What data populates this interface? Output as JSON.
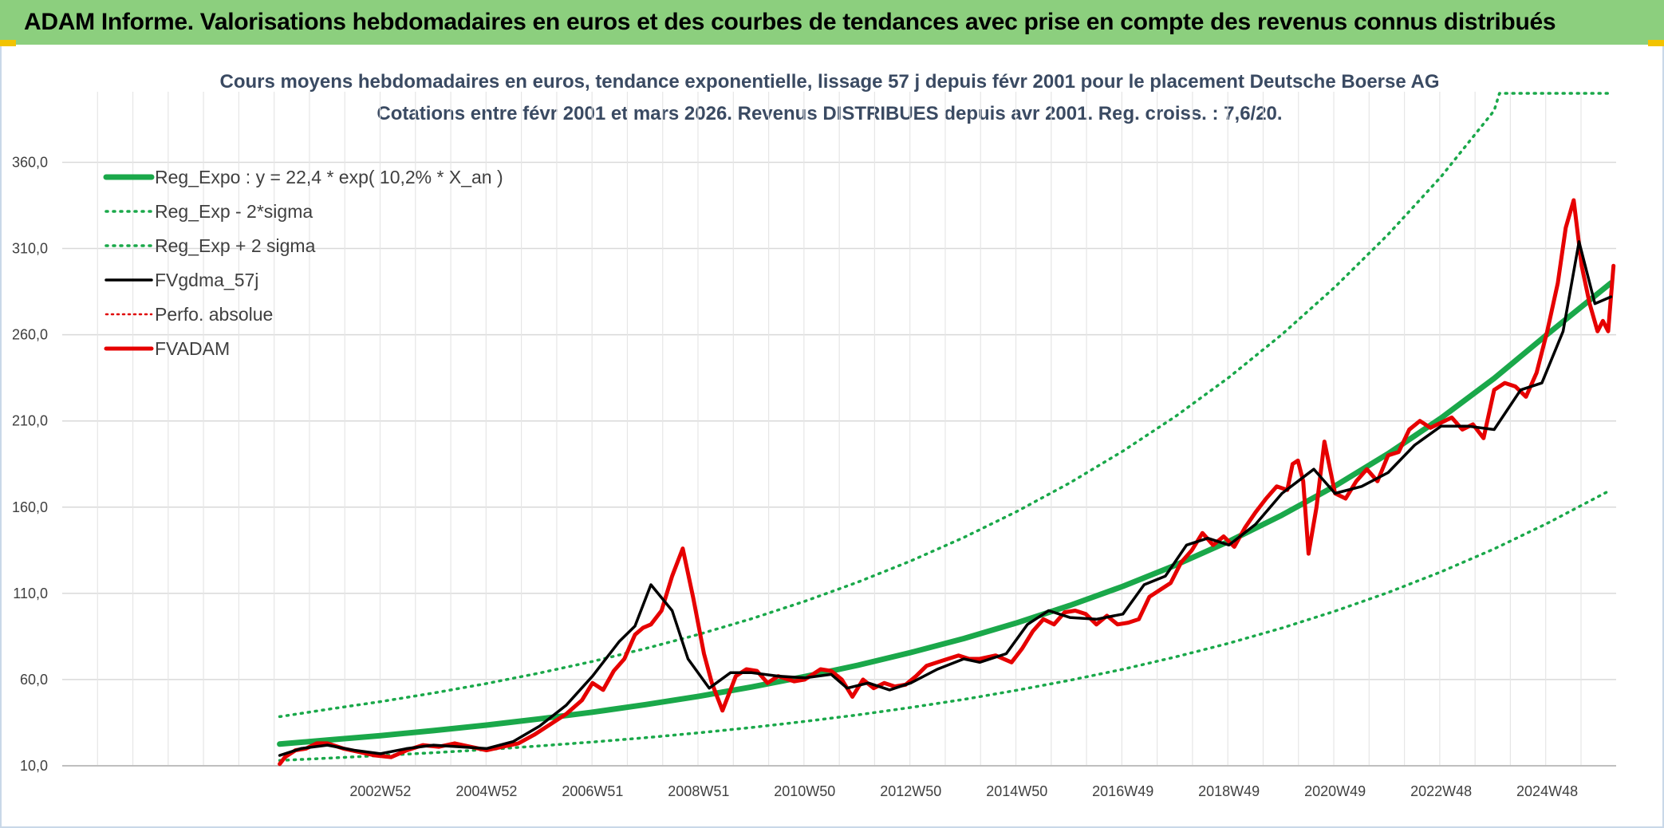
{
  "banner": {
    "title": "ADAM Informe. Valorisations hebdomadaires en euros et des courbes de tendances avec prise en compte des revenus connus distribués"
  },
  "colors": {
    "banner_bg": "#8ccf7e",
    "reg_expo": "#1aa84a",
    "sigma": "#1aa84a",
    "fvgdma": "#000000",
    "perfo": "#e00000",
    "fvadam": "#e60000",
    "grid": "#d9d9d9",
    "title_text": "#3a4a62"
  },
  "chart_data": {
    "type": "line",
    "title_lines": [
      "Cours moyens hebdomadaires en euros, tendance exponentielle, lissage 57 j depuis févr 2001 pour le placement Deutsche Boerse AG",
      "Cotations entre févr 2001 et mars 2026. Revenus DISTRIBUES depuis avr 2001. Reg. croiss. : 7,6/20."
    ],
    "y_ticks": [
      "10,0",
      "60,0",
      "110,0",
      "160,0",
      "210,0",
      "260,0",
      "310,0",
      "360,0"
    ],
    "y_tick_values": [
      10,
      60,
      110,
      160,
      210,
      260,
      310,
      360
    ],
    "ylim": [
      10,
      400
    ],
    "xlim": [
      1997.0,
      2026.3
    ],
    "grid": true,
    "x_ticks": [
      {
        "label": "2002W52",
        "x": 2003.0
      },
      {
        "label": "2004W52",
        "x": 2005.0
      },
      {
        "label": "2006W51",
        "x": 2007.0
      },
      {
        "label": "2008W51",
        "x": 2009.0
      },
      {
        "label": "2010W50",
        "x": 2011.0
      },
      {
        "label": "2012W50",
        "x": 2013.0
      },
      {
        "label": "2014W50",
        "x": 2015.0
      },
      {
        "label": "2016W49",
        "x": 2017.0
      },
      {
        "label": "2018W49",
        "x": 2019.0
      },
      {
        "label": "2020W49",
        "x": 2021.0
      },
      {
        "label": "2022W48",
        "x": 2023.0
      },
      {
        "label": "2024W48",
        "x": 2025.0
      }
    ],
    "legend_position": "top-left",
    "legend": [
      {
        "key": "reg_expo",
        "label": "Reg_Expo : y = 22,4 * exp( 10,2% *  X_an )",
        "style": "solid-thick"
      },
      {
        "key": "reg_minus",
        "label": "Reg_Exp - 2*sigma",
        "style": "dotted"
      },
      {
        "key": "reg_plus",
        "label": "Reg_Exp + 2 sigma",
        "style": "dotted"
      },
      {
        "key": "fvgdma",
        "label": "FVgdma_57j",
        "style": "solid"
      },
      {
        "key": "perfo",
        "label": "Perfo. absolue",
        "style": "dotted"
      },
      {
        "key": "fvadam",
        "label": "FVADAM",
        "style": "solid"
      }
    ],
    "series": [
      {
        "key": "reg_expo",
        "x": [
          2001.1,
          2002,
          2003,
          2004,
          2005,
          2006,
          2007,
          2008,
          2009,
          2010,
          2011,
          2012,
          2013,
          2014,
          2015,
          2016,
          2017,
          2018,
          2019,
          2020,
          2021,
          2022,
          2023,
          2024,
          2025,
          2026.2
        ],
        "y": [
          22.6,
          24.9,
          27.5,
          30.4,
          33.6,
          37.2,
          41.1,
          45.5,
          50.3,
          55.7,
          61.7,
          68.3,
          75.7,
          83.8,
          92.9,
          103.0,
          114.1,
          126.5,
          140.2,
          155.4,
          172.3,
          191.0,
          211.7,
          234.7,
          260.2,
          290.0
        ]
      },
      {
        "key": "reg_minus",
        "x": [
          2001.1,
          2002,
          2003,
          2004,
          2005,
          2006,
          2007,
          2008,
          2009,
          2010,
          2011,
          2012,
          2013,
          2014,
          2015,
          2016,
          2017,
          2018,
          2019,
          2020,
          2021,
          2022,
          2023,
          2024,
          2025,
          2026.2
        ],
        "y": [
          13.1,
          14.4,
          15.9,
          17.6,
          19.4,
          21.5,
          23.8,
          26.3,
          29.1,
          32.2,
          35.7,
          39.5,
          43.8,
          48.5,
          53.8,
          59.6,
          66.0,
          73.2,
          81.1,
          89.9,
          99.7,
          110.5,
          122.5,
          135.8,
          150.6,
          170.0
        ]
      },
      {
        "key": "reg_plus",
        "x": [
          2001.1,
          2002,
          2003,
          2004,
          2005,
          2006,
          2007,
          2008,
          2009,
          2010,
          2011,
          2012,
          2013,
          2014,
          2015,
          2016,
          2017,
          2018,
          2019,
          2020,
          2021,
          2022,
          2023,
          2024,
          2024.1,
          2026.2
        ],
        "y": [
          38.5,
          42.7,
          47.2,
          52.2,
          57.7,
          63.8,
          70.5,
          78.0,
          86.2,
          95.3,
          105.4,
          116.5,
          128.8,
          142.4,
          157.5,
          174.1,
          192.5,
          212.8,
          235.3,
          260.2,
          287.7,
          318.1,
          351.7,
          390.0,
          400.0,
          400.0
        ]
      },
      {
        "key": "fvgdma",
        "x": [
          2001.1,
          2001.5,
          2002.0,
          2002.5,
          2003.0,
          2003.5,
          2004.0,
          2004.5,
          2005.0,
          2005.5,
          2006.0,
          2006.5,
          2007.0,
          2007.5,
          2007.8,
          2008.1,
          2008.5,
          2008.8,
          2009.2,
          2009.6,
          2010.0,
          2010.5,
          2011.0,
          2011.5,
          2011.8,
          2012.2,
          2012.6,
          2013.0,
          2013.5,
          2014.0,
          2014.3,
          2014.8,
          2015.2,
          2015.6,
          2016.0,
          2016.5,
          2017.0,
          2017.4,
          2017.8,
          2018.2,
          2018.6,
          2019.0,
          2019.5,
          2020.0,
          2020.3,
          2020.6,
          2021.0,
          2021.5,
          2022.0,
          2022.5,
          2023.0,
          2023.5,
          2024.0,
          2024.5,
          2024.9,
          2025.3,
          2025.6,
          2025.9,
          2026.2
        ],
        "y": [
          16,
          20,
          22,
          19,
          17,
          20,
          22,
          21,
          20,
          24,
          33,
          45,
          62,
          82,
          91,
          115,
          100,
          72,
          55,
          64,
          64,
          62,
          61,
          63,
          55,
          58,
          54,
          58,
          66,
          72,
          70,
          75,
          92,
          100,
          96,
          95,
          98,
          115,
          120,
          138,
          142,
          138,
          150,
          168,
          175,
          182,
          168,
          172,
          180,
          196,
          207,
          207,
          205,
          228,
          232,
          262,
          314,
          278,
          282
        ]
      },
      {
        "key": "fvadam",
        "x": [
          2001.1,
          2001.2,
          2001.4,
          2001.6,
          2001.8,
          2002.0,
          2002.3,
          2002.6,
          2002.9,
          2003.2,
          2003.5,
          2003.8,
          2004.1,
          2004.4,
          2004.7,
          2005.0,
          2005.3,
          2005.6,
          2005.9,
          2006.2,
          2006.5,
          2006.8,
          2007.0,
          2007.2,
          2007.4,
          2007.6,
          2007.8,
          2007.95,
          2008.1,
          2008.3,
          2008.5,
          2008.7,
          2008.9,
          2009.1,
          2009.25,
          2009.45,
          2009.7,
          2009.9,
          2010.1,
          2010.3,
          2010.5,
          2010.8,
          2011.0,
          2011.3,
          2011.5,
          2011.7,
          2011.9,
          2012.1,
          2012.3,
          2012.5,
          2012.7,
          2012.9,
          2013.1,
          2013.3,
          2013.6,
          2013.9,
          2014.1,
          2014.3,
          2014.6,
          2014.9,
          2015.1,
          2015.3,
          2015.5,
          2015.7,
          2015.9,
          2016.1,
          2016.3,
          2016.5,
          2016.7,
          2016.9,
          2017.1,
          2017.3,
          2017.5,
          2017.7,
          2017.9,
          2018.1,
          2018.3,
          2018.5,
          2018.7,
          2018.9,
          2019.1,
          2019.3,
          2019.5,
          2019.7,
          2019.9,
          2020.1,
          2020.2,
          2020.3,
          2020.4,
          2020.5,
          2020.65,
          2020.8,
          2021.0,
          2021.2,
          2021.4,
          2021.6,
          2021.8,
          2022.0,
          2022.2,
          2022.4,
          2022.6,
          2022.8,
          2023.0,
          2023.2,
          2023.4,
          2023.6,
          2023.8,
          2024.0,
          2024.2,
          2024.4,
          2024.6,
          2024.8,
          2025.0,
          2025.2,
          2025.35,
          2025.5,
          2025.65,
          2025.8,
          2025.95,
          2026.05,
          2026.15,
          2026.25
        ],
        "y": [
          11,
          15,
          19,
          20,
          23,
          23,
          20,
          18,
          16,
          15,
          19,
          22,
          21,
          23,
          21,
          19,
          21,
          23,
          28,
          34,
          40,
          48,
          58,
          54,
          65,
          72,
          86,
          90,
          92,
          100,
          120,
          136,
          107,
          75,
          58,
          42,
          62,
          66,
          65,
          58,
          62,
          59,
          60,
          66,
          65,
          60,
          50,
          60,
          55,
          58,
          56,
          57,
          62,
          68,
          71,
          74,
          72,
          72,
          74,
          70,
          78,
          88,
          95,
          92,
          99,
          100,
          98,
          92,
          97,
          92,
          93,
          95,
          108,
          112,
          116,
          128,
          135,
          145,
          138,
          143,
          137,
          148,
          157,
          165,
          172,
          170,
          185,
          187,
          175,
          133,
          160,
          198,
          168,
          165,
          175,
          182,
          175,
          190,
          192,
          205,
          210,
          206,
          209,
          212,
          205,
          208,
          200,
          228,
          232,
          230,
          224,
          238,
          262,
          290,
          322,
          338,
          300,
          278,
          262,
          268,
          262,
          300
        ]
      }
    ]
  }
}
